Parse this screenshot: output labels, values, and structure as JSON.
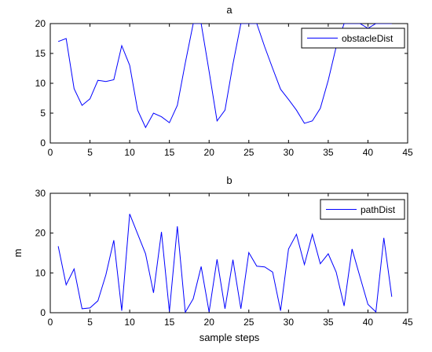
{
  "chart_data": [
    {
      "type": "line",
      "title": "a",
      "xlabel": "",
      "ylabel": "",
      "xlim": [
        0,
        45
      ],
      "ylim": [
        0,
        20
      ],
      "xticks": [
        0,
        5,
        10,
        15,
        20,
        25,
        30,
        35,
        40,
        45
      ],
      "yticks": [
        0,
        5,
        10,
        15,
        20
      ],
      "grid": false,
      "legend": "top-right",
      "series": [
        {
          "name": "obstacleDist",
          "color": "#0000ff",
          "x": [
            1,
            2,
            3,
            4,
            5,
            6,
            7,
            8,
            9,
            10,
            11,
            12,
            13,
            14,
            15,
            16,
            17,
            18,
            19,
            20,
            21,
            22,
            23,
            24,
            25,
            26,
            27,
            28,
            29,
            30,
            31,
            32,
            33,
            34,
            35,
            36,
            37,
            38,
            39,
            40,
            41,
            42,
            43
          ],
          "values": [
            17.0,
            17.5,
            9.1,
            6.3,
            7.4,
            10.5,
            10.3,
            10.6,
            16.3,
            13.0,
            5.5,
            2.6,
            5.0,
            4.4,
            3.4,
            6.3,
            13.4,
            20,
            20,
            12.0,
            3.7,
            5.5,
            13.2,
            20,
            20,
            20,
            16.1,
            12.5,
            9.0,
            7.3,
            5.5,
            3.3,
            3.7,
            5.8,
            10.5,
            16.1,
            20,
            20,
            20,
            19.2,
            20,
            20,
            20
          ]
        }
      ]
    },
    {
      "type": "line",
      "title": "b",
      "xlabel": "sample steps",
      "ylabel": "m",
      "xlim": [
        0,
        45
      ],
      "ylim": [
        0,
        30
      ],
      "xticks": [
        0,
        5,
        10,
        15,
        20,
        25,
        30,
        35,
        40,
        45
      ],
      "yticks": [
        0,
        10,
        20,
        30
      ],
      "grid": false,
      "legend": "top-right",
      "series": [
        {
          "name": "pathDist",
          "color": "#0000ff",
          "x": [
            1,
            2,
            3,
            4,
            5,
            6,
            7,
            8,
            9,
            10,
            11,
            12,
            13,
            14,
            15,
            16,
            17,
            18,
            19,
            20,
            21,
            22,
            23,
            24,
            25,
            26,
            27,
            28,
            29,
            30,
            31,
            32,
            33,
            34,
            35,
            36,
            37,
            38,
            39,
            40,
            41,
            42,
            43
          ],
          "values": [
            16.7,
            7.0,
            11.0,
            1.0,
            1.2,
            3.0,
            9.5,
            18.2,
            0.5,
            24.8,
            19.8,
            14.8,
            5.0,
            20.3,
            0.3,
            21.7,
            0.1,
            3.5,
            11.6,
            0.2,
            13.4,
            1.0,
            13.3,
            1.0,
            15.1,
            11.7,
            11.5,
            10.2,
            0.5,
            16.0,
            19.7,
            12.1,
            19.7,
            12.3,
            14.8,
            10.2,
            1.7,
            16.0,
            9.0,
            2.1,
            0.2,
            18.8,
            4.0
          ]
        }
      ]
    }
  ]
}
